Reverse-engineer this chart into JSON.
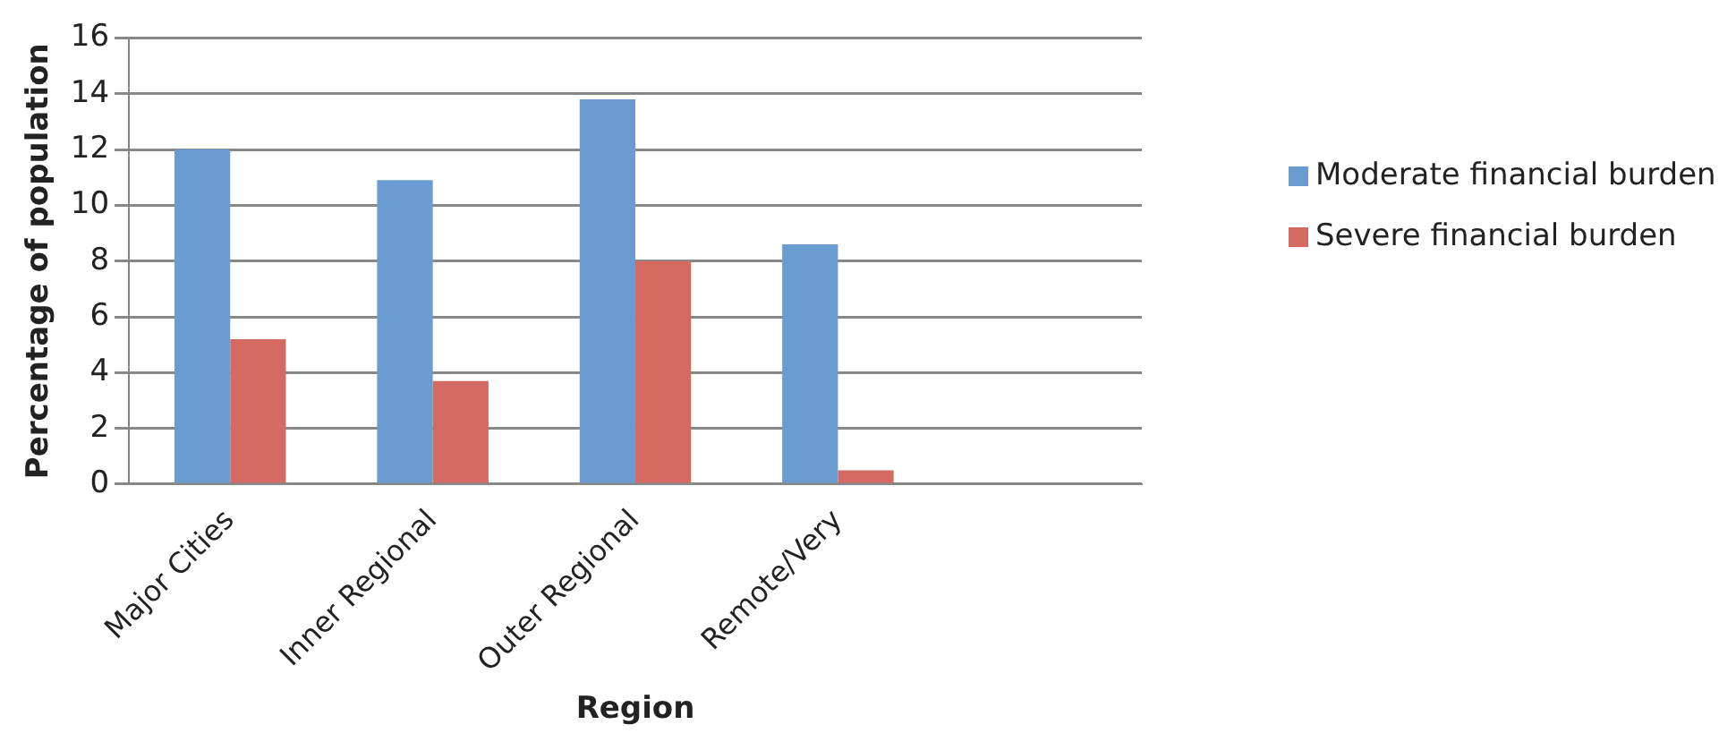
{
  "chart_data": {
    "type": "bar",
    "xlabel": "Region",
    "ylabel": "Percentage of population",
    "categories": [
      "Major Cities",
      "Inner Regional",
      "Outer Regional",
      "Remote/Very",
      null
    ],
    "series": [
      {
        "name": "Moderate financial burden",
        "color": "#6a9bd1",
        "values": [
          12,
          10.9,
          13.8,
          8.6,
          null
        ]
      },
      {
        "name": "Severe financial burden",
        "color": "#d46a61",
        "values": [
          5.2,
          3.7,
          8,
          0.5,
          null
        ]
      }
    ],
    "ylim": [
      0,
      16
    ],
    "yticks": [
      0,
      2,
      4,
      6,
      8,
      10,
      12,
      14,
      16
    ],
    "grid": "y",
    "legend": "right"
  }
}
